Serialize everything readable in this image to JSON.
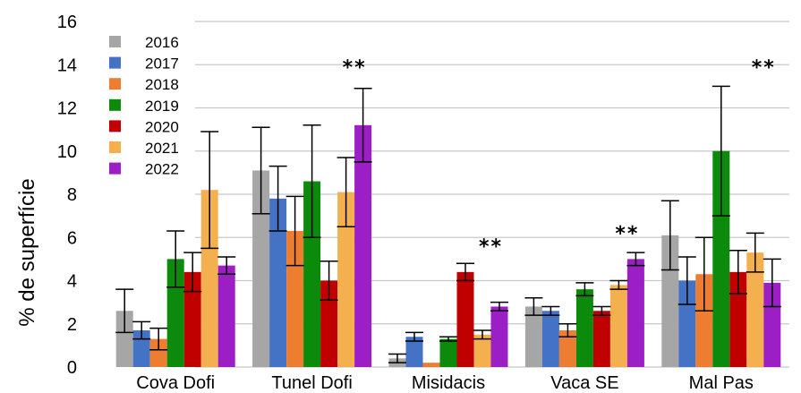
{
  "chart_data": {
    "type": "bar",
    "title": "",
    "xlabel": "",
    "ylabel": "% de superfície",
    "ylim": [
      0,
      16
    ],
    "yticks": [
      0,
      2,
      4,
      6,
      8,
      10,
      12,
      14,
      16
    ],
    "grid": true,
    "legend_position": "top-left",
    "categories": [
      "Cova Dofi",
      "Tunel Dofi",
      "Misidacis",
      "Vaca SE",
      "Mal Pas"
    ],
    "series": [
      {
        "name": "2016",
        "color": "#a6a6a6",
        "values": [
          2.6,
          9.1,
          0.4,
          2.8,
          6.1
        ],
        "err": [
          1.0,
          2.0,
          0.2,
          0.4,
          1.6
        ]
      },
      {
        "name": "2017",
        "color": "#4472c4",
        "values": [
          1.7,
          7.8,
          1.4,
          2.6,
          4.0
        ],
        "err": [
          0.4,
          1.5,
          0.2,
          0.2,
          1.1
        ]
      },
      {
        "name": "2018",
        "color": "#ed7d31",
        "values": [
          1.3,
          6.3,
          0.2,
          1.7,
          4.3
        ],
        "err": [
          0.5,
          1.6,
          0.0,
          0.3,
          1.7
        ]
      },
      {
        "name": "2019",
        "color": "#0c8a0c",
        "values": [
          5.0,
          8.6,
          1.3,
          3.6,
          10.0
        ],
        "err": [
          1.3,
          2.6,
          0.1,
          0.3,
          3.0
        ]
      },
      {
        "name": "2020",
        "color": "#c00000",
        "values": [
          4.4,
          4.0,
          4.4,
          2.6,
          4.4
        ],
        "err": [
          0.9,
          0.9,
          0.4,
          0.2,
          1.0
        ]
      },
      {
        "name": "2021",
        "color": "#f4b04f",
        "values": [
          8.2,
          8.1,
          1.5,
          3.8,
          5.3
        ],
        "err": [
          2.7,
          1.6,
          0.2,
          0.2,
          0.9
        ]
      },
      {
        "name": "2022",
        "color": "#9b1fc5",
        "values": [
          4.7,
          11.2,
          2.8,
          5.0,
          3.9
        ],
        "err": [
          0.4,
          1.7,
          0.2,
          0.3,
          1.1
        ]
      }
    ],
    "annotations": [
      {
        "category": "Tunel Dofi",
        "text": "**",
        "y": 14.0
      },
      {
        "category": "Misidacis",
        "text": "**",
        "y": 5.7
      },
      {
        "category": "Vaca SE",
        "text": "**",
        "y": 6.3
      },
      {
        "category": "Mal Pas",
        "text": "**",
        "y": 14.0
      }
    ]
  }
}
